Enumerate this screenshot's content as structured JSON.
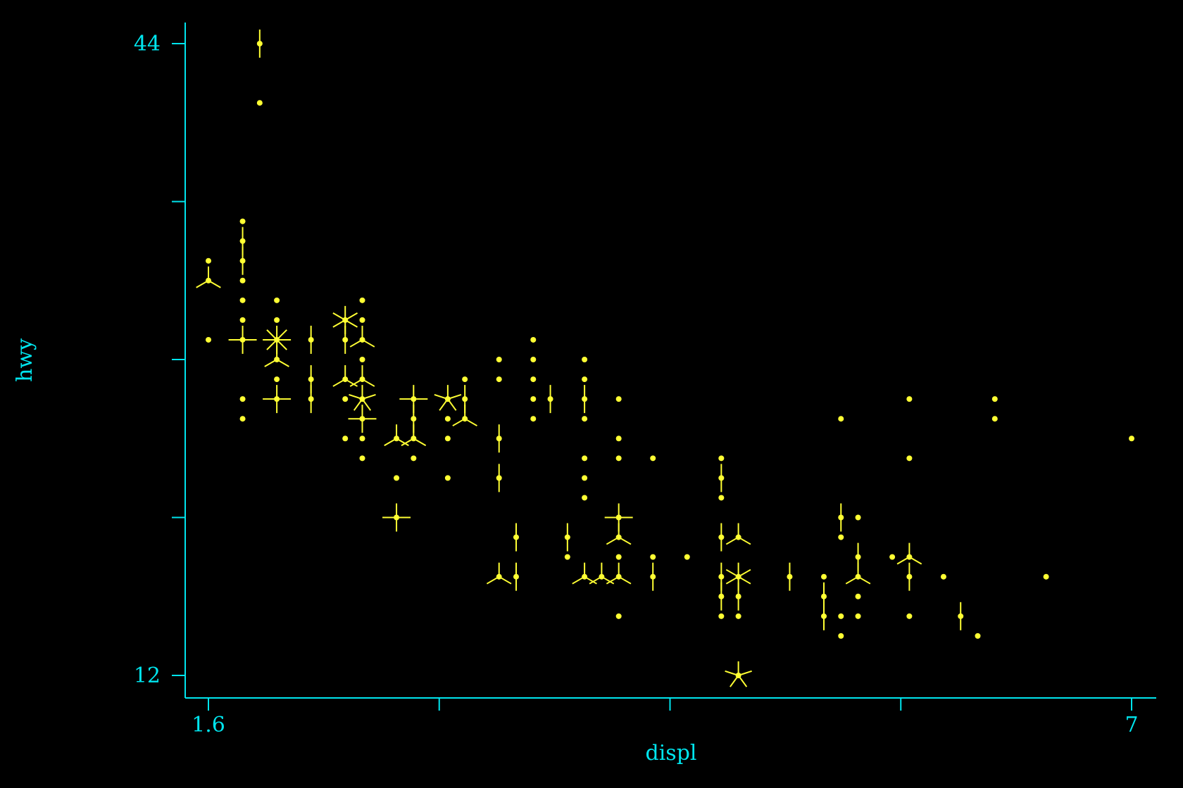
{
  "chart_data": {
    "type": "scatter",
    "subtype": "sunflower",
    "xlabel": "displ",
    "ylabel": "hwy",
    "x_tick_labels": [
      "1.6",
      "",
      "",
      "",
      "7"
    ],
    "x_ticks": [
      1.6,
      2.95,
      4.3,
      5.65,
      7.0
    ],
    "y_tick_labels": [
      "12",
      "",
      "",
      "",
      "44"
    ],
    "y_ticks": [
      12,
      20,
      28,
      36,
      44
    ],
    "xlim": [
      1.47,
      7.13
    ],
    "ylim": [
      11.0,
      45.1
    ],
    "colors": {
      "background": "#000000",
      "axis": "#00e5ee",
      "points": "#ffff33"
    },
    "points": [
      {
        "x": 1.6,
        "y": 33,
        "n": 1
      },
      {
        "x": 1.6,
        "y": 32,
        "n": 3
      },
      {
        "x": 1.6,
        "y": 29,
        "n": 1
      },
      {
        "x": 1.8,
        "y": 35,
        "n": 1
      },
      {
        "x": 1.8,
        "y": 34,
        "n": 2
      },
      {
        "x": 1.8,
        "y": 33,
        "n": 2
      },
      {
        "x": 1.8,
        "y": 32,
        "n": 1
      },
      {
        "x": 1.8,
        "y": 31,
        "n": 1
      },
      {
        "x": 1.8,
        "y": 30,
        "n": 1
      },
      {
        "x": 1.8,
        "y": 29,
        "n": 4
      },
      {
        "x": 1.8,
        "y": 26,
        "n": 1
      },
      {
        "x": 1.8,
        "y": 25,
        "n": 1
      },
      {
        "x": 1.9,
        "y": 44,
        "n": 2
      },
      {
        "x": 1.9,
        "y": 41,
        "n": 1
      },
      {
        "x": 2.0,
        "y": 31,
        "n": 1
      },
      {
        "x": 2.0,
        "y": 30,
        "n": 1
      },
      {
        "x": 2.0,
        "y": 29,
        "n": 8
      },
      {
        "x": 2.0,
        "y": 28,
        "n": 3
      },
      {
        "x": 2.0,
        "y": 27,
        "n": 1
      },
      {
        "x": 2.0,
        "y": 26,
        "n": 4
      },
      {
        "x": 2.2,
        "y": 29,
        "n": 2
      },
      {
        "x": 2.2,
        "y": 27,
        "n": 2
      },
      {
        "x": 2.2,
        "y": 26,
        "n": 2
      },
      {
        "x": 2.4,
        "y": 30,
        "n": 6
      },
      {
        "x": 2.4,
        "y": 29,
        "n": 2
      },
      {
        "x": 2.4,
        "y": 27,
        "n": 3
      },
      {
        "x": 2.4,
        "y": 26,
        "n": 1
      },
      {
        "x": 2.4,
        "y": 24,
        "n": 1
      },
      {
        "x": 2.5,
        "y": 31,
        "n": 1
      },
      {
        "x": 2.5,
        "y": 30,
        "n": 1
      },
      {
        "x": 2.5,
        "y": 29,
        "n": 3
      },
      {
        "x": 2.5,
        "y": 28,
        "n": 1
      },
      {
        "x": 2.5,
        "y": 27,
        "n": 3
      },
      {
        "x": 2.5,
        "y": 26,
        "n": 5
      },
      {
        "x": 2.5,
        "y": 25,
        "n": 4
      },
      {
        "x": 2.5,
        "y": 24,
        "n": 1
      },
      {
        "x": 2.5,
        "y": 23,
        "n": 1
      },
      {
        "x": 2.7,
        "y": 24,
        "n": 3
      },
      {
        "x": 2.7,
        "y": 22,
        "n": 1
      },
      {
        "x": 2.7,
        "y": 20,
        "n": 4
      },
      {
        "x": 2.8,
        "y": 26,
        "n": 4
      },
      {
        "x": 2.8,
        "y": 25,
        "n": 2
      },
      {
        "x": 2.8,
        "y": 24,
        "n": 3
      },
      {
        "x": 2.8,
        "y": 23,
        "n": 1
      },
      {
        "x": 3.0,
        "y": 26,
        "n": 5
      },
      {
        "x": 3.0,
        "y": 25,
        "n": 1
      },
      {
        "x": 3.0,
        "y": 24,
        "n": 1
      },
      {
        "x": 3.0,
        "y": 22,
        "n": 1
      },
      {
        "x": 3.1,
        "y": 27,
        "n": 1
      },
      {
        "x": 3.1,
        "y": 26,
        "n": 2
      },
      {
        "x": 3.1,
        "y": 25,
        "n": 3
      },
      {
        "x": 3.3,
        "y": 28,
        "n": 1
      },
      {
        "x": 3.3,
        "y": 27,
        "n": 1
      },
      {
        "x": 3.3,
        "y": 24,
        "n": 2
      },
      {
        "x": 3.3,
        "y": 22,
        "n": 2
      },
      {
        "x": 3.3,
        "y": 17,
        "n": 3
      },
      {
        "x": 3.4,
        "y": 19,
        "n": 2
      },
      {
        "x": 3.4,
        "y": 17,
        "n": 2
      },
      {
        "x": 3.5,
        "y": 29,
        "n": 1
      },
      {
        "x": 3.5,
        "y": 28,
        "n": 1
      },
      {
        "x": 3.5,
        "y": 27,
        "n": 1
      },
      {
        "x": 3.5,
        "y": 26,
        "n": 1
      },
      {
        "x": 3.5,
        "y": 25,
        "n": 1
      },
      {
        "x": 3.6,
        "y": 26,
        "n": 2
      },
      {
        "x": 3.7,
        "y": 19,
        "n": 2
      },
      {
        "x": 3.7,
        "y": 18,
        "n": 1
      },
      {
        "x": 3.8,
        "y": 28,
        "n": 1
      },
      {
        "x": 3.8,
        "y": 27,
        "n": 1
      },
      {
        "x": 3.8,
        "y": 26,
        "n": 2
      },
      {
        "x": 3.8,
        "y": 25,
        "n": 1
      },
      {
        "x": 3.8,
        "y": 23,
        "n": 1
      },
      {
        "x": 3.8,
        "y": 22,
        "n": 1
      },
      {
        "x": 3.8,
        "y": 21,
        "n": 1
      },
      {
        "x": 3.8,
        "y": 17,
        "n": 3
      },
      {
        "x": 3.9,
        "y": 17,
        "n": 3
      },
      {
        "x": 4.0,
        "y": 26,
        "n": 1
      },
      {
        "x": 4.0,
        "y": 24,
        "n": 1
      },
      {
        "x": 4.0,
        "y": 23,
        "n": 1
      },
      {
        "x": 4.0,
        "y": 20,
        "n": 4
      },
      {
        "x": 4.0,
        "y": 19,
        "n": 3
      },
      {
        "x": 4.0,
        "y": 18,
        "n": 1
      },
      {
        "x": 4.0,
        "y": 17,
        "n": 3
      },
      {
        "x": 4.0,
        "y": 15,
        "n": 1
      },
      {
        "x": 4.2,
        "y": 23,
        "n": 1
      },
      {
        "x": 4.2,
        "y": 18,
        "n": 1
      },
      {
        "x": 4.2,
        "y": 17,
        "n": 2
      },
      {
        "x": 4.4,
        "y": 18,
        "n": 1
      },
      {
        "x": 4.6,
        "y": 23,
        "n": 1
      },
      {
        "x": 4.6,
        "y": 22,
        "n": 2
      },
      {
        "x": 4.6,
        "y": 21,
        "n": 1
      },
      {
        "x": 4.6,
        "y": 19,
        "n": 2
      },
      {
        "x": 4.6,
        "y": 17,
        "n": 2
      },
      {
        "x": 4.6,
        "y": 16,
        "n": 2
      },
      {
        "x": 4.6,
        "y": 15,
        "n": 1
      },
      {
        "x": 4.7,
        "y": 19,
        "n": 3
      },
      {
        "x": 4.7,
        "y": 17,
        "n": 6
      },
      {
        "x": 4.7,
        "y": 16,
        "n": 2
      },
      {
        "x": 4.7,
        "y": 15,
        "n": 1
      },
      {
        "x": 4.7,
        "y": 12,
        "n": 5
      },
      {
        "x": 5.0,
        "y": 17,
        "n": 2
      },
      {
        "x": 5.2,
        "y": 17,
        "n": 1
      },
      {
        "x": 5.2,
        "y": 16,
        "n": 2
      },
      {
        "x": 5.2,
        "y": 15,
        "n": 2
      },
      {
        "x": 5.3,
        "y": 25,
        "n": 1
      },
      {
        "x": 5.3,
        "y": 20,
        "n": 2
      },
      {
        "x": 5.3,
        "y": 19,
        "n": 1
      },
      {
        "x": 5.3,
        "y": 15,
        "n": 1
      },
      {
        "x": 5.3,
        "y": 14,
        "n": 1
      },
      {
        "x": 5.4,
        "y": 20,
        "n": 1
      },
      {
        "x": 5.4,
        "y": 18,
        "n": 2
      },
      {
        "x": 5.4,
        "y": 17,
        "n": 3
      },
      {
        "x": 5.4,
        "y": 16,
        "n": 1
      },
      {
        "x": 5.4,
        "y": 15,
        "n": 1
      },
      {
        "x": 5.6,
        "y": 18,
        "n": 1
      },
      {
        "x": 5.7,
        "y": 26,
        "n": 1
      },
      {
        "x": 5.7,
        "y": 23,
        "n": 1
      },
      {
        "x": 5.7,
        "y": 18,
        "n": 3
      },
      {
        "x": 5.7,
        "y": 17,
        "n": 2
      },
      {
        "x": 5.7,
        "y": 15,
        "n": 1
      },
      {
        "x": 5.9,
        "y": 17,
        "n": 1
      },
      {
        "x": 6.0,
        "y": 15,
        "n": 2
      },
      {
        "x": 6.1,
        "y": 14,
        "n": 1
      },
      {
        "x": 6.2,
        "y": 26,
        "n": 1
      },
      {
        "x": 6.2,
        "y": 25,
        "n": 1
      },
      {
        "x": 6.5,
        "y": 17,
        "n": 1
      },
      {
        "x": 7.0,
        "y": 24,
        "n": 1
      }
    ]
  }
}
